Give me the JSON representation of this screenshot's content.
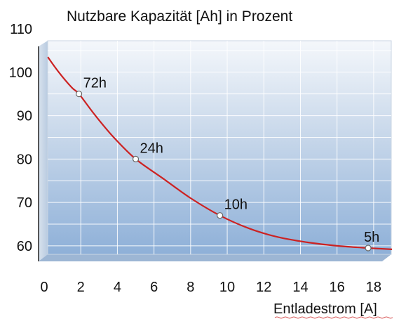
{
  "chart_data": {
    "type": "line",
    "title": "Nutzbare Kapazität [Ah] in Prozent",
    "xlabel": "Entladestrom [A]",
    "ylabel": "",
    "xlim": [
      0,
      19
    ],
    "ylim": [
      54,
      110
    ],
    "x_ticks": [
      "0",
      "2",
      "4",
      "6",
      "8",
      "10",
      "12",
      "14",
      "16",
      "18"
    ],
    "y_ticks": [
      "60",
      "70",
      "80",
      "90",
      "100",
      "110"
    ],
    "grid": true,
    "colors": {
      "curve": "#cc2222",
      "panel_top": "#f4f7fb",
      "panel_bottom": "#8eb0d8",
      "grid": "#ffffff"
    },
    "curve": {
      "x": [
        0.2,
        0.8,
        1.5,
        1.9,
        2.8,
        3.8,
        5.0,
        6.5,
        8.0,
        9.6,
        11.2,
        12.8,
        14.4,
        16.0,
        17.7,
        19.0
      ],
      "y": [
        103.5,
        100.0,
        96.5,
        95.0,
        90.0,
        85.0,
        80.0,
        75.5,
        71.0,
        67.0,
        64.0,
        62.0,
        60.8,
        60.0,
        59.5,
        59.2
      ]
    },
    "points": [
      {
        "x": 1.9,
        "y": 95,
        "label": "72h"
      },
      {
        "x": 5.0,
        "y": 80,
        "label": "24h"
      },
      {
        "x": 9.6,
        "y": 67,
        "label": "10h"
      },
      {
        "x": 17.7,
        "y": 59.5,
        "label": "5h"
      }
    ]
  }
}
